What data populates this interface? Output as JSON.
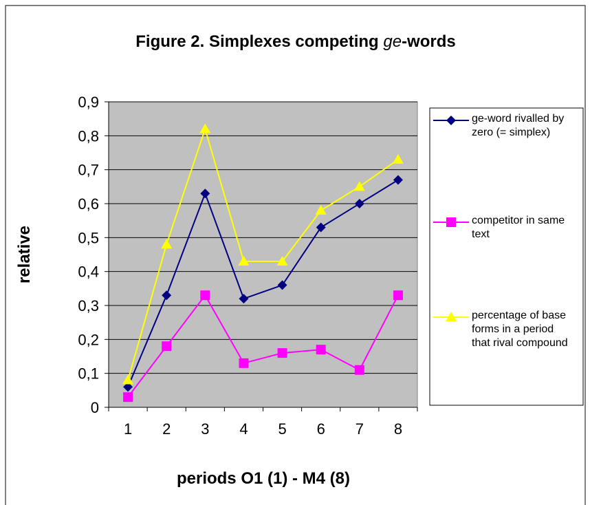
{
  "chart_data": {
    "type": "line",
    "title": [
      "Figure 2. Simplexes competing ",
      "ge",
      "-words"
    ],
    "x_label": "periods O1 (1) - M4 (8)",
    "y_label": "relative",
    "categories": [
      "1",
      "2",
      "3",
      "4",
      "5",
      "6",
      "7",
      "8"
    ],
    "series": [
      {
        "name": "ge-word rivalled by zero (= simplex)",
        "color": "#000080",
        "marker": "diamond",
        "values": [
          0.06,
          0.33,
          0.63,
          0.32,
          0.36,
          0.53,
          0.6,
          0.67
        ]
      },
      {
        "name": "competitor in same text",
        "color": "#ff00ff",
        "marker": "square",
        "values": [
          0.03,
          0.18,
          0.33,
          0.13,
          0.16,
          0.17,
          0.11,
          0.33
        ]
      },
      {
        "name": "percentage of base forms in a period that rival compound",
        "color": "#ffff00",
        "marker": "triangle",
        "values": [
          0.08,
          0.48,
          0.82,
          0.43,
          0.43,
          0.58,
          0.65,
          0.73
        ]
      }
    ],
    "ylim": [
      0,
      0.9
    ],
    "yticks": [
      0,
      {
        "value": 0.1,
        "label": "0,1"
      },
      {
        "value": 0.2,
        "label": "0,2"
      },
      {
        "value": 0.3,
        "label": "0,3"
      },
      {
        "value": 0.4,
        "label": "0,4"
      },
      {
        "value": 0.5,
        "label": "0,5"
      },
      {
        "value": 0.6,
        "label": "0,6"
      },
      {
        "value": 0.7,
        "label": "0,7"
      },
      {
        "value": 0.8,
        "label": "0,8"
      },
      {
        "value": 0.9,
        "label": "0,9"
      }
    ],
    "grid": true,
    "legend": "right"
  }
}
